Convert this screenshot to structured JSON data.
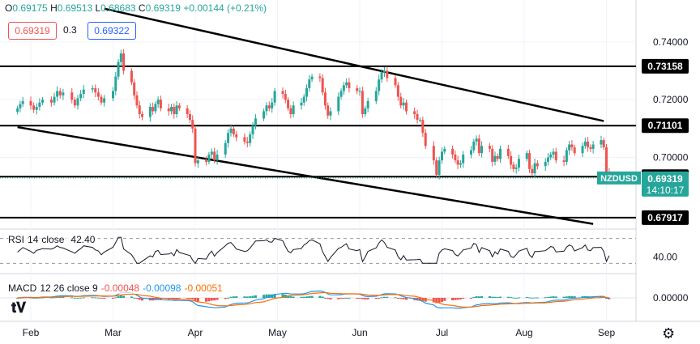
{
  "header": {
    "o_label": "O",
    "o_value": "0.69175",
    "h_label": "H",
    "h_value": "0.69513",
    "l_label": "L",
    "l_value": "0.68683",
    "c_label": "C",
    "c_value": "0.69319",
    "change": "+0.00144 (+0.21%)"
  },
  "quote": {
    "bid": "0.69319",
    "spread": "0.3",
    "ask": "0.69322"
  },
  "symbol_tag": {
    "symbol": "NZDUSD",
    "price": "0.69319",
    "countdown": "14:10:17"
  },
  "rsi": {
    "label": "RSI",
    "period": "14",
    "source": "close",
    "value": "42.40",
    "axis_label": "40.00"
  },
  "macd": {
    "label": "MACD",
    "params": "12 26 close 9",
    "hist": "-0.00048",
    "macd": "-0.00098",
    "signal": "-0.00051",
    "axis_label": "0.00000"
  },
  "colors": {
    "up": "#26a69a",
    "down": "#ef5350",
    "macd_line": "#2196f3",
    "signal_line": "#ff6d00",
    "rsi_line": "#131722"
  },
  "icons": {
    "logo": "tradingview-logo-icon",
    "settings": "gear-icon"
  },
  "chart_data": {
    "type": "candlestick",
    "symbol": "NZDUSD",
    "x_ticks": [
      "Feb",
      "Mar",
      "Apr",
      "May",
      "Jun",
      "Jul",
      "Aug",
      "Sep"
    ],
    "y_ticks": [
      "0.74000",
      "0.72000",
      "0.70000"
    ],
    "ylim": [
      0.6755,
      0.7545
    ],
    "price_levels": [
      {
        "value": 0.73158,
        "label": "0.73158"
      },
      {
        "value": 0.71101,
        "label": "0.71101"
      },
      {
        "value": 0.69337,
        "label": "0.69337"
      },
      {
        "value": 0.67917,
        "label": "0.67917"
      }
    ],
    "trendlines": [
      {
        "from": {
          "date": "2021-02-26",
          "price": 0.7515
        },
        "to": {
          "date": "2021-08-31",
          "price": 0.7126
        }
      },
      {
        "from": {
          "date": "2021-01-27",
          "price": 0.7105
        },
        "to": {
          "date": "2021-08-27",
          "price": 0.677
        }
      }
    ],
    "first_bar_date": "2021-01-27",
    "closes": [
      0.717,
      0.7185,
      0.7195,
      0.718,
      0.7165,
      0.7175,
      0.719,
      0.72,
      0.719,
      0.721,
      0.723,
      0.7215,
      0.7225,
      0.72,
      0.718,
      0.7205,
      0.722,
      0.7235,
      0.724,
      0.7225,
      0.721,
      0.719,
      0.7205,
      0.723,
      0.728,
      0.733,
      0.736,
      0.73,
      0.726,
      0.7215,
      0.718,
      0.715,
      0.714,
      0.7175,
      0.716,
      0.7185,
      0.72,
      0.717,
      0.716,
      0.7175,
      0.715,
      0.718,
      0.717,
      0.715,
      0.713,
      0.71,
      0.698,
      0.699,
      0.6985,
      0.701,
      0.702,
      0.699,
      0.701,
      0.705,
      0.7085,
      0.71,
      0.708,
      0.707,
      0.7055,
      0.705,
      0.708,
      0.711,
      0.7135,
      0.716,
      0.718,
      0.717,
      0.719,
      0.723,
      0.722,
      0.72,
      0.717,
      0.715,
      0.718,
      0.719,
      0.721,
      0.724,
      0.727,
      0.728,
      0.7275,
      0.7225,
      0.718,
      0.7145,
      0.716,
      0.721,
      0.723,
      0.725,
      0.726,
      0.724,
      0.723,
      0.723,
      0.715,
      0.717,
      0.7195,
      0.723,
      0.727,
      0.7295,
      0.73,
      0.7275,
      0.725,
      0.721,
      0.718,
      0.719,
      0.716,
      0.715,
      0.713,
      0.713,
      0.7085,
      0.704,
      0.699,
      0.694,
      0.699,
      0.702,
      0.703,
      0.701,
      0.699,
      0.6975,
      0.698,
      0.701,
      0.7025,
      0.7055,
      0.7065,
      0.7015,
      0.704,
      0.703,
      0.6985,
      0.7005,
      0.6995,
      0.703,
      0.7005,
      0.6975,
      0.696,
      0.6965,
      0.6995,
      0.7015,
      0.696,
      0.6945,
      0.698,
      0.697,
      0.6985,
      0.7,
      0.701,
      0.702,
      0.699,
      0.6985,
      0.7025,
      0.7045,
      0.7035,
      0.7015,
      0.704,
      0.7055,
      0.7035,
      0.703,
      0.7045,
      0.706,
      0.7035,
      0.695,
      0.6932
    ]
  }
}
